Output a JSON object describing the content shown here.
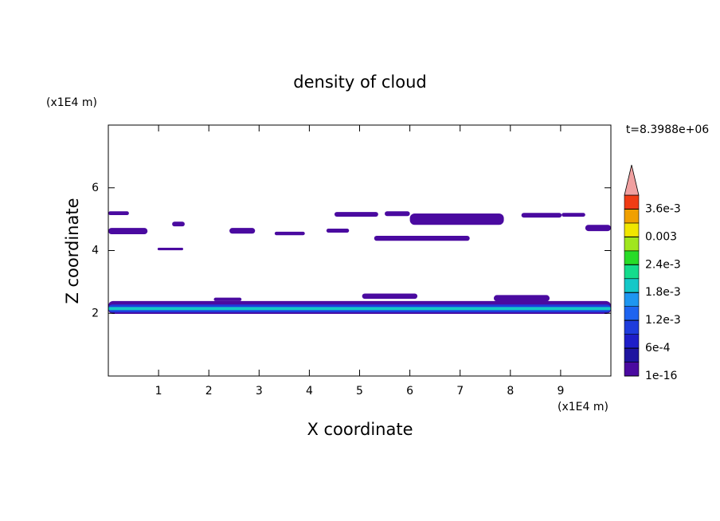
{
  "chart_data": {
    "type": "contour",
    "title": "density of cloud",
    "xlabel": "X coordinate",
    "ylabel": "Z coordinate",
    "xunit": "(x1E4 m)",
    "yunit": "(x1E4 m)",
    "annotation": "t=8.3988e+06",
    "xlim": [
      0,
      10
    ],
    "ylim": [
      0,
      8
    ],
    "xticks": [
      1,
      2,
      3,
      4,
      5,
      6,
      7,
      8,
      9
    ],
    "yticks": [
      2,
      4,
      6
    ],
    "colorbar": {
      "levels": [
        1e-16,
        0.0003,
        0.0006,
        0.0009,
        0.0012,
        0.0015,
        0.0018,
        0.0021,
        0.0024,
        0.0027,
        0.003,
        0.0033,
        0.0036,
        0.0039
      ],
      "colors": [
        "#4a0aa0",
        "#1e14a0",
        "#1e1ec8",
        "#1e3cdc",
        "#1e64f0",
        "#1e96f0",
        "#14c8c8",
        "#14dc8c",
        "#28dc28",
        "#a0e61e",
        "#f0e600",
        "#f0a000",
        "#f03c14"
      ],
      "extend_color": "#f0a0a0",
      "ticks": [
        {
          "value": 1e-16,
          "label": "1e-16"
        },
        {
          "value": 0.0006,
          "label": "6e-4"
        },
        {
          "value": 0.0012,
          "label": "1.2e-3"
        },
        {
          "value": 0.0018,
          "label": "1.8e-3"
        },
        {
          "value": 0.0024,
          "label": "2.4e-3"
        },
        {
          "value": 0.003,
          "label": "0.003"
        },
        {
          "value": 0.0036,
          "label": "3.6e-3"
        }
      ]
    },
    "cells": [
      {
        "x": [
          0,
          0.41
        ],
        "z": [
          5.13,
          5.25
        ],
        "value": 0.0001
      },
      {
        "x": [
          0,
          0.78
        ],
        "z": [
          4.52,
          4.72
        ],
        "value": 0.0001
      },
      {
        "x": [
          1.27,
          1.52
        ],
        "z": [
          4.77,
          4.92
        ],
        "value": 0.0001
      },
      {
        "x": [
          2.41,
          2.92
        ],
        "z": [
          4.54,
          4.72
        ],
        "value": 0.0001
      },
      {
        "x": [
          3.31,
          3.91
        ],
        "z": [
          4.49,
          4.6
        ],
        "value": 0.0001
      },
      {
        "x": [
          4.34,
          4.79
        ],
        "z": [
          4.57,
          4.7
        ],
        "value": 0.0001
      },
      {
        "x": [
          4.5,
          5.37
        ],
        "z": [
          5.08,
          5.23
        ],
        "value": 0.0001
      },
      {
        "x": [
          5.5,
          6.0
        ],
        "z": [
          5.1,
          5.25
        ],
        "value": 0.0001
      },
      {
        "x": [
          6.0,
          7.87
        ],
        "z": [
          4.82,
          5.18
        ],
        "value": 0.0001
      },
      {
        "x": [
          5.29,
          7.19
        ],
        "z": [
          4.31,
          4.47
        ],
        "value": 0.0001
      },
      {
        "x": [
          8.22,
          9.02
        ],
        "z": [
          5.05,
          5.2
        ],
        "value": 0.0001
      },
      {
        "x": [
          9.02,
          9.49
        ],
        "z": [
          5.08,
          5.2
        ],
        "value": 0.0001
      },
      {
        "x": [
          9.49,
          10
        ],
        "z": [
          4.62,
          4.82
        ],
        "value": 0.0001
      },
      {
        "x": [
          0.98,
          1.49
        ],
        "z": [
          4.01,
          4.09
        ],
        "value": 0.0001
      },
      {
        "x": [
          5.05,
          6.15
        ],
        "z": [
          2.46,
          2.63
        ],
        "value": 0.0001
      },
      {
        "x": [
          7.67,
          8.78
        ],
        "z": [
          2.38,
          2.58
        ],
        "value": 0.0001
      },
      {
        "x": [
          2.1,
          2.65
        ],
        "z": [
          2.39,
          2.5
        ],
        "value": 0.0001
      },
      {
        "x": [
          0,
          10
        ],
        "z": [
          1.98,
          2.39
        ],
        "value": 0.0001
      },
      {
        "x": [
          0,
          10
        ],
        "z": [
          2.03,
          2.28
        ],
        "value": 0.001
      },
      {
        "x": [
          0,
          10
        ],
        "z": [
          2.1,
          2.2
        ],
        "value": 0.0019
      }
    ]
  }
}
